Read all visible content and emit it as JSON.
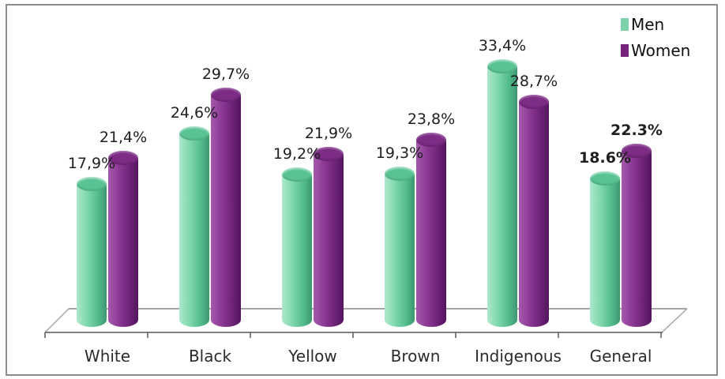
{
  "chart_data": {
    "type": "bar",
    "subtype": "3d-cylinder-clustered",
    "title": "",
    "categories": [
      "White",
      "Black",
      "Yellow",
      "Brown",
      "Indigenous",
      "General"
    ],
    "series": [
      {
        "name": "Men",
        "color": "#7bd2a8",
        "values": [
          17.9,
          24.6,
          19.2,
          19.3,
          33.4,
          18.6
        ],
        "labels": [
          "17,9%",
          "24,6%",
          "19,2%",
          "19,3%",
          "33,4%",
          "18.6%"
        ]
      },
      {
        "name": "Women",
        "color": "#76257f",
        "values": [
          21.4,
          29.7,
          21.9,
          23.8,
          28.7,
          22.3
        ],
        "labels": [
          "21,4%",
          "29,7%",
          "21,9%",
          "23,8%",
          "28,7%",
          "22.3%"
        ]
      }
    ],
    "label_bold": [
      false,
      false,
      false,
      false,
      false,
      true
    ],
    "legend": {
      "position": "top-right",
      "entries": [
        "Men",
        "Women"
      ]
    },
    "axes": {
      "y_axis_visible": false,
      "gridlines": false,
      "value_format": "percent",
      "x_tick_count": 7
    }
  }
}
